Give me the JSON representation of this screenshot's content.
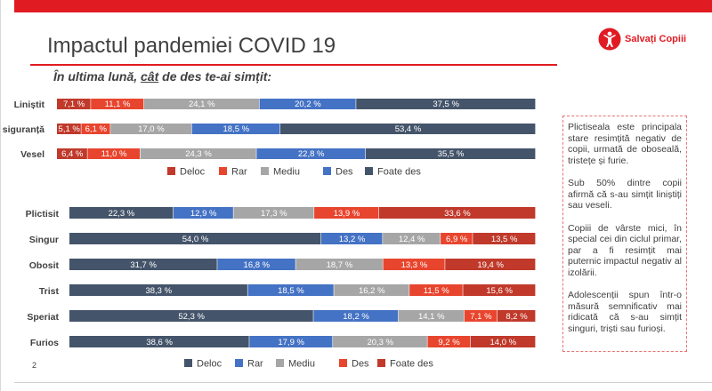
{
  "slide": {
    "title": "Impactul pandemiei COVID 19",
    "subtitle_prefix": "În ultima lună, ",
    "subtitle_underlined": "cât",
    "subtitle_suffix": " de des te-ai simțit:",
    "logo_text": "Salvați Copiii",
    "page_number": "2",
    "notes": [
      "Plictiseala este principala stare resimțită negativ de copii, urmată de oboseală, tristețe și furie.",
      "Sub 50% dintre copii afirmă că s-au simțit liniștiți sau veseli.",
      "Copiii de vârste mici, în special cei din ciclul primar, par a fi resimțit mai puternic impactul negativ al izolării.",
      "Adolescenții spun într-o măsură semnificativ mai ridicată că s-au simțit singuri, triști sau furioși."
    ]
  },
  "colors": {
    "accent": "#e11b22",
    "dark_red": "#c0392b",
    "red": "#e8452e",
    "gray": "#a6a6a6",
    "blue": "#4472c4",
    "navy": "#44546a"
  },
  "chart_data": [
    {
      "type": "bar",
      "orientation": "horizontal-stacked-100",
      "categories": [
        "Liniștit",
        "În siguranță",
        "Vesel"
      ],
      "category_labels_shown": [
        "Liniștit",
        "siguranță",
        "Vesel"
      ],
      "series": [
        {
          "name": "Deloc",
          "color": "#c0392b",
          "values": [
            7.1,
            5.1,
            6.4
          ],
          "labels": [
            "7,1 %",
            "5,1 %",
            "6,4 %"
          ]
        },
        {
          "name": "Rar",
          "color": "#e8452e",
          "values": [
            11.1,
            6.1,
            11.0
          ],
          "labels": [
            "11,1 %",
            "6,1 %",
            "11,0 %"
          ]
        },
        {
          "name": "Mediu",
          "color": "#a6a6a6",
          "values": [
            24.1,
            17.0,
            24.3
          ],
          "labels": [
            "24,1 %",
            "17,0 %",
            "24,3 %"
          ]
        },
        {
          "name": "Des",
          "color": "#4472c4",
          "values": [
            20.2,
            18.5,
            22.8
          ],
          "labels": [
            "20,2 %",
            "18,5 %",
            "22,8 %"
          ]
        },
        {
          "name": "Foate des",
          "color": "#44546a",
          "values": [
            37.5,
            53.4,
            35.5
          ],
          "labels": [
            "37,5 %",
            "53,4 %",
            "35,5 %"
          ]
        }
      ]
    },
    {
      "type": "bar",
      "orientation": "horizontal-stacked-100",
      "categories": [
        "Plictisit",
        "Singur",
        "Obosit",
        "Trist",
        "Speriat",
        "Furios"
      ],
      "series": [
        {
          "name": "Deloc",
          "color": "#44546a",
          "values": [
            22.3,
            54.0,
            31.7,
            38.3,
            52.3,
            38.6
          ],
          "labels": [
            "22,3 %",
            "54,0 %",
            "31,7 %",
            "38,3 %",
            "52,3 %",
            "38,6 %"
          ]
        },
        {
          "name": "Rar",
          "color": "#4472c4",
          "values": [
            12.9,
            13.2,
            16.8,
            18.5,
            18.2,
            17.9
          ],
          "labels": [
            "12,9 %",
            "13,2 %",
            "16,8 %",
            "18,5 %",
            "18,2 %",
            "17,9 %"
          ]
        },
        {
          "name": "Mediu",
          "color": "#a6a6a6",
          "values": [
            17.3,
            12.4,
            18.7,
            16.2,
            14.1,
            20.3
          ],
          "labels": [
            "17,3 %",
            "12,4 %",
            "18,7 %",
            "16,2 %",
            "14,1 %",
            "20,3 %"
          ]
        },
        {
          "name": "Des",
          "color": "#e8452e",
          "values": [
            13.9,
            6.9,
            13.3,
            11.5,
            7.1,
            9.2
          ],
          "labels": [
            "13,9 %",
            "6,9 %",
            "13,3 %",
            "11,5 %",
            "7,1 %",
            "9,2 %"
          ]
        },
        {
          "name": "Foate des",
          "color": "#c0392b",
          "values": [
            33.6,
            13.5,
            19.4,
            15.6,
            8.2,
            14.0
          ],
          "labels": [
            "33,6 %",
            "13,5 %",
            "19,4 %",
            "15,6 %",
            "8,2 %",
            "14,0 %"
          ]
        }
      ]
    }
  ]
}
